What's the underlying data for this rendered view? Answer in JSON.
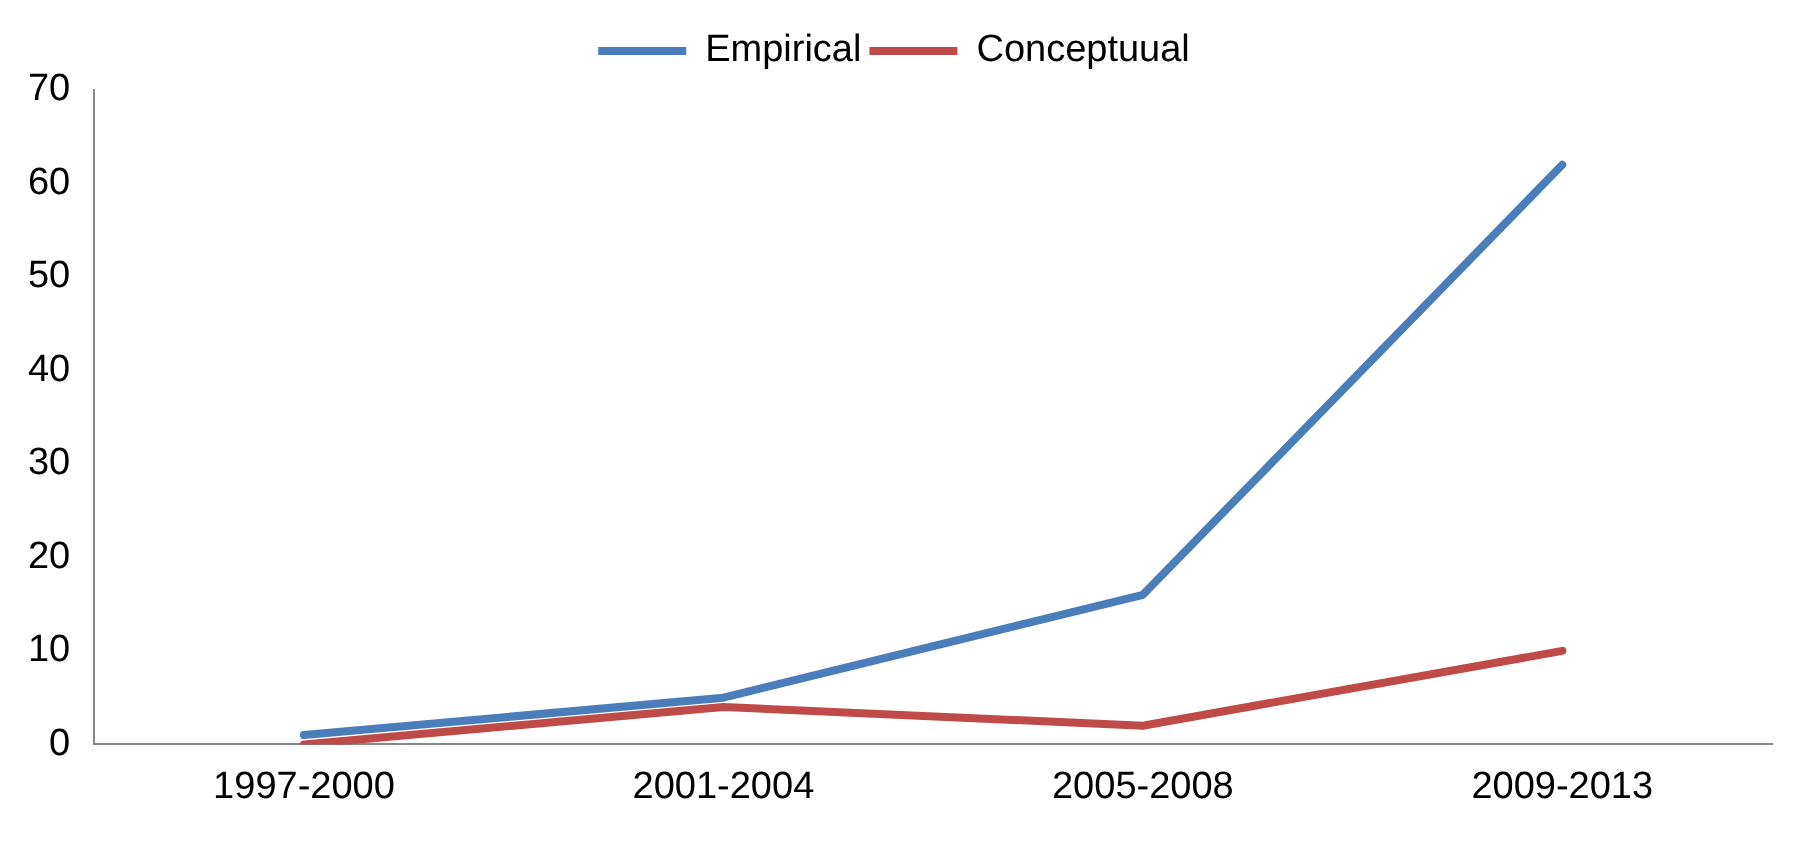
{
  "chart_data": {
    "type": "line",
    "categories": [
      "1997-2000",
      "2001-2004",
      "2005-2008",
      "2009-2013"
    ],
    "series": [
      {
        "name": "Empirical",
        "color": "#4a7ebb",
        "values": [
          1,
          5,
          16,
          62
        ]
      },
      {
        "name": "Conceptuual",
        "color": "#be4b48",
        "values": [
          0,
          4,
          2,
          10
        ]
      }
    ],
    "ylim": [
      0,
      70
    ],
    "yticks": [
      0,
      10,
      20,
      30,
      40,
      50,
      60,
      70
    ],
    "grid": false,
    "legend": "top",
    "marker": "none",
    "line_style": "solid"
  }
}
